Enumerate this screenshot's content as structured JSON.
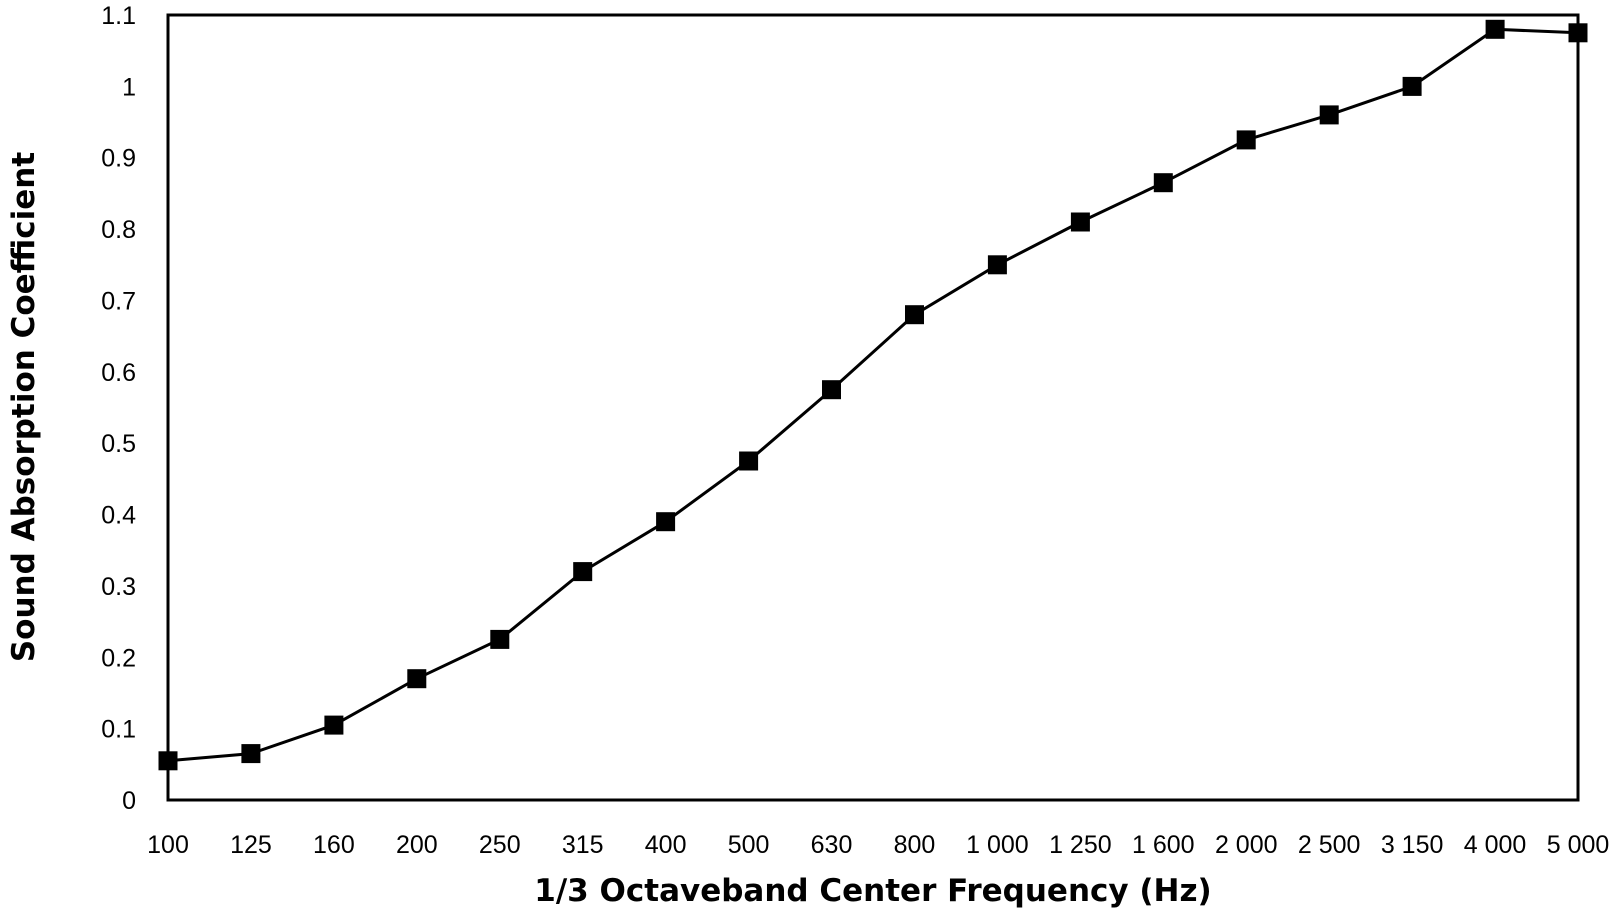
{
  "chart_data": {
    "type": "line",
    "title": "",
    "xlabel": "1/3 Octaveband Center Frequency (Hz)",
    "ylabel": "Sound Absorption Coefficient",
    "categories": [
      "100",
      "125",
      "160",
      "200",
      "250",
      "315",
      "400",
      "500",
      "630",
      "800",
      "1 000",
      "1 250",
      "1 600",
      "2 000",
      "2 500",
      "3 150",
      "4 000",
      "5 000"
    ],
    "y_ticks": [
      "0",
      "0.1",
      "0.2",
      "0.3",
      "0.4",
      "0.5",
      "0.6",
      "0.7",
      "0.8",
      "0.9",
      "1",
      "1.1"
    ],
    "ylim": [
      0,
      1.1
    ],
    "grid": false,
    "legend": "none",
    "marker": "square",
    "colors": {
      "line": "#000000",
      "marker": "#000000",
      "frame": "#000000",
      "background": "#ffffff"
    },
    "series": [
      {
        "values": [
          0.055,
          0.065,
          0.105,
          0.17,
          0.225,
          0.32,
          0.39,
          0.475,
          0.575,
          0.68,
          0.75,
          0.81,
          0.865,
          0.925,
          0.96,
          1.0,
          1.08,
          1.075
        ]
      }
    ]
  }
}
